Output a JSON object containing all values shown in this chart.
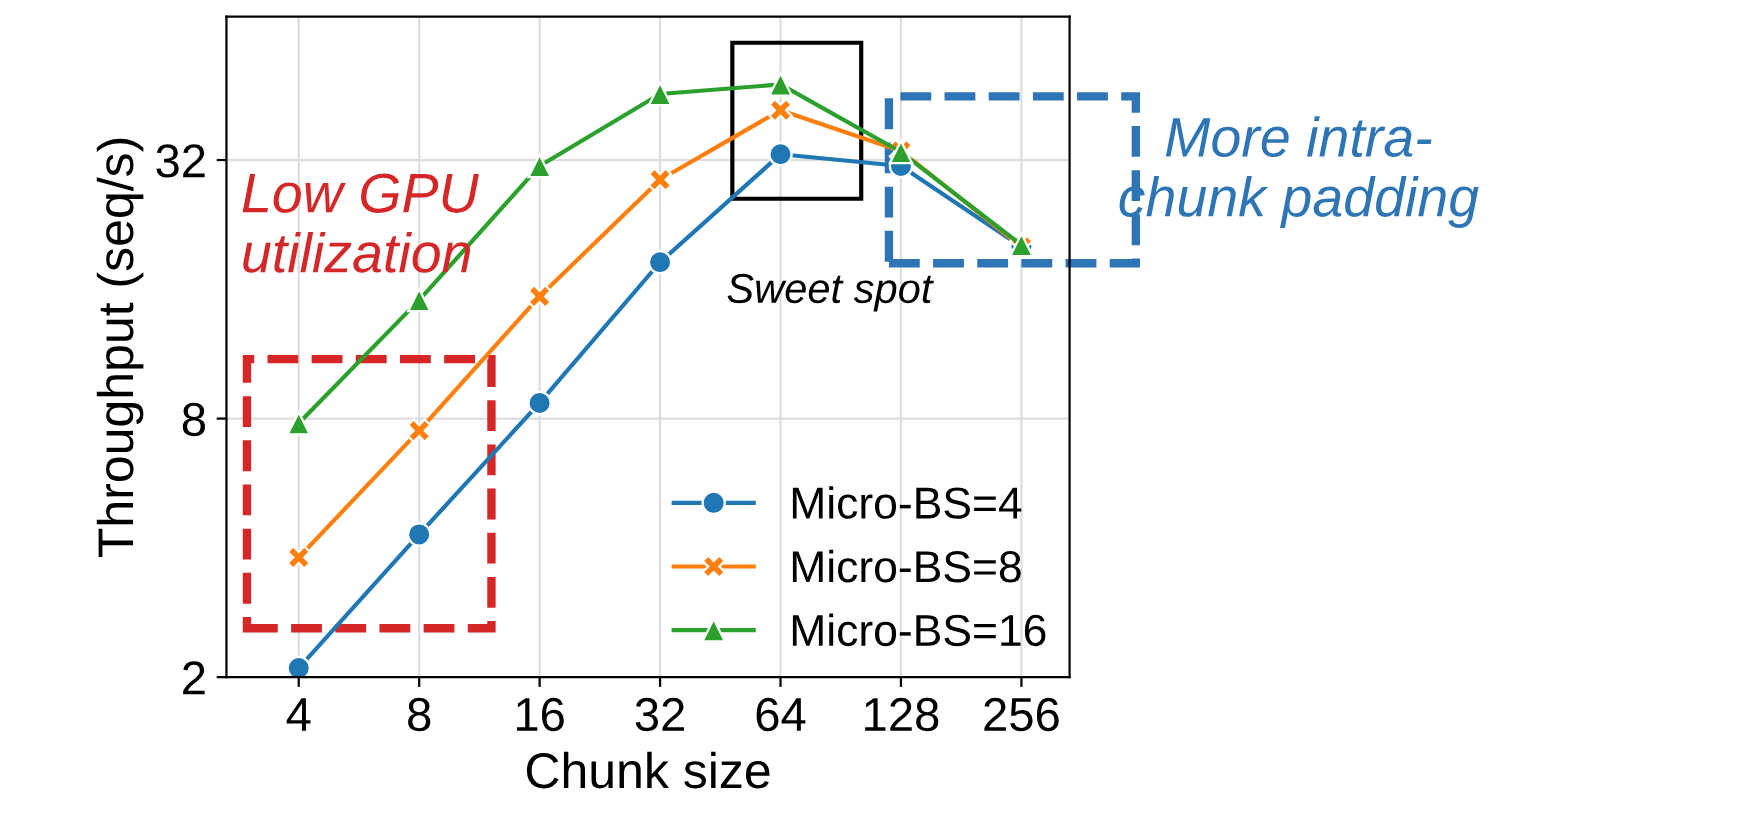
{
  "chart_data": {
    "type": "line",
    "xlabel": "Chunk size",
    "ylabel": "Throughput (seq/s)",
    "categories": [
      "4",
      "8",
      "16",
      "32",
      "64",
      "128",
      "256"
    ],
    "series": [
      {
        "name": "Micro-BS=4",
        "color": "#1f77b4",
        "marker": "circle",
        "values": [
          2.1,
          4.3,
          8.7,
          18.5,
          33,
          31,
          20.1
        ]
      },
      {
        "name": "Micro-BS=8",
        "color": "#ff7f0e",
        "marker": "cross",
        "values": [
          3.8,
          7.5,
          15.4,
          28.8,
          41.8,
          33.6,
          20.1
        ]
      },
      {
        "name": "Micro-BS=16",
        "color": "#2ca02c",
        "marker": "triangle",
        "values": [
          7.8,
          15.1,
          31,
          45.6,
          48,
          33.4,
          20.3
        ]
      }
    ],
    "log": "y",
    "ylim": [
      2,
      69
    ],
    "yticks": [
      2,
      8,
      32
    ],
    "grid": true,
    "legend": "bottom right",
    "line_style": "solid",
    "annotations": [
      "Low GPU\nutilization",
      "Sweet spot",
      "More intra-\nchunk padding"
    ]
  }
}
